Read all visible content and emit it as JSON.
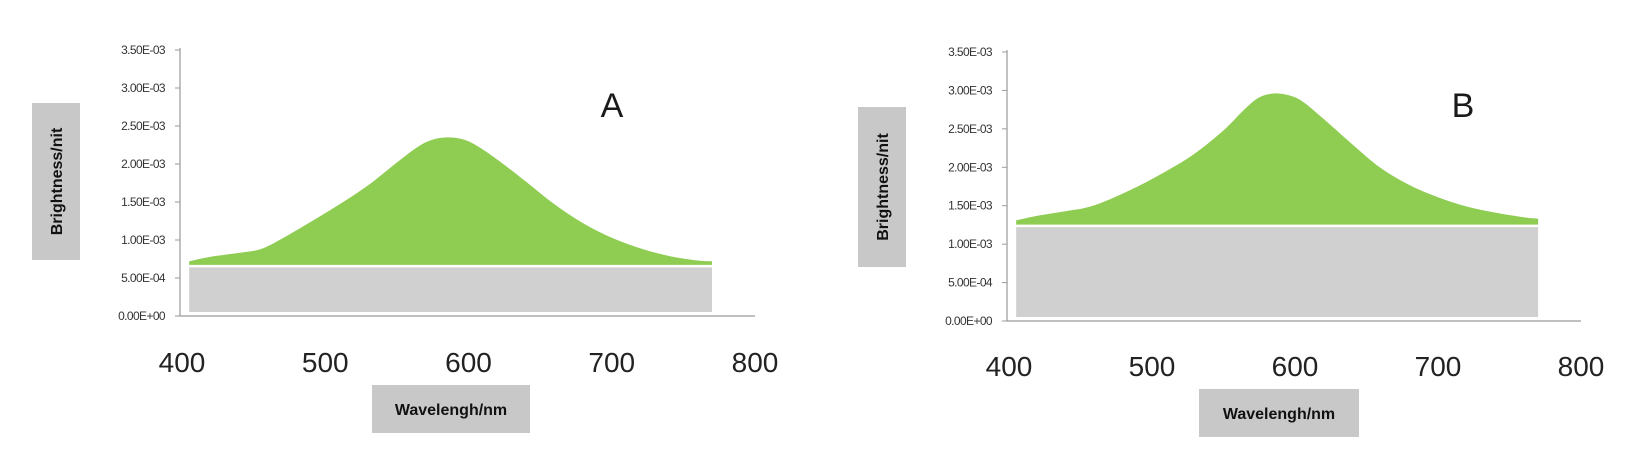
{
  "chart_data": [
    {
      "type": "area",
      "panel_label": "A",
      "xlabel": "Wavelengh/nm",
      "ylabel": "Brightness/nit",
      "xlim": [
        400,
        800
      ],
      "ylim": [
        0,
        0.0035
      ],
      "x_ticks": [
        "400",
        "500",
        "600",
        "700",
        "800"
      ],
      "y_ticks": [
        "0.00E+00",
        "5.00E-04",
        "1.00E-03",
        "1.50E-03",
        "2.00E-03",
        "2.50E-03",
        "3.00E-03",
        "3.50E-03"
      ],
      "baseline": 0.00067,
      "x": [
        405,
        420,
        440,
        455,
        470,
        490,
        510,
        530,
        550,
        565,
        575,
        585,
        595,
        605,
        620,
        640,
        660,
        680,
        700,
        720,
        740,
        760,
        770
      ],
      "y": [
        0.00072,
        0.00078,
        0.00083,
        0.00088,
        0.00102,
        0.00124,
        0.00147,
        0.00172,
        0.00202,
        0.00223,
        0.00232,
        0.00235,
        0.00233,
        0.00225,
        0.00206,
        0.00177,
        0.00147,
        0.00122,
        0.00103,
        0.00089,
        0.00079,
        0.00073,
        0.00072
      ],
      "series": [
        {
          "name": "",
          "color": "#8ecc52"
        }
      ],
      "baseline_color": "#d0d0d0",
      "grid": false
    },
    {
      "type": "area",
      "panel_label": "B",
      "xlabel": "Wavelengh/nm",
      "ylabel": "Brightness/nit",
      "xlim": [
        400,
        800
      ],
      "ylim": [
        0,
        0.0035
      ],
      "x_ticks": [
        "400",
        "500",
        "600",
        "700",
        "800"
      ],
      "y_ticks": [
        "0.00E+00",
        "5.00E-04",
        "1.00E-03",
        "1.50E-03",
        "2.00E-03",
        "2.50E-03",
        "3.00E-03",
        "3.50E-03"
      ],
      "baseline": 0.00125,
      "x": [
        405,
        420,
        440,
        455,
        470,
        490,
        510,
        530,
        550,
        565,
        575,
        585,
        595,
        605,
        620,
        640,
        660,
        680,
        700,
        720,
        740,
        760,
        770
      ],
      "y": [
        0.00131,
        0.00137,
        0.00143,
        0.00148,
        0.00158,
        0.00175,
        0.00195,
        0.00218,
        0.00248,
        0.00276,
        0.00291,
        0.00296,
        0.00294,
        0.00286,
        0.00263,
        0.0023,
        0.00199,
        0.00177,
        0.00161,
        0.00149,
        0.00141,
        0.00135,
        0.00133
      ],
      "series": [
        {
          "name": "",
          "color": "#8ecc52"
        }
      ],
      "baseline_color": "#d0d0d0",
      "grid": false
    }
  ]
}
